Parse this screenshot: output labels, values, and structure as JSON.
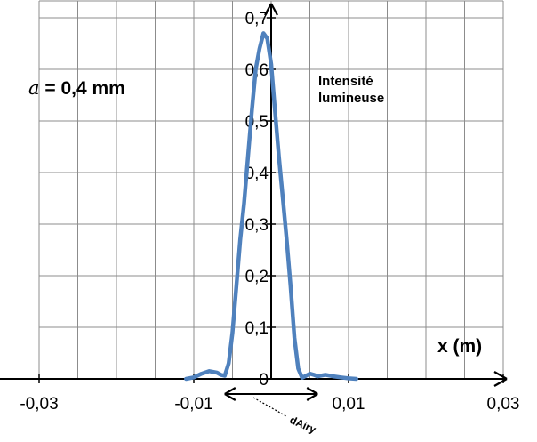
{
  "chart_data": {
    "type": "line",
    "annotation_param_symbol": "a",
    "annotation_param_value": " = 0,4 mm",
    "ylabel_line1": "Intensité",
    "ylabel_line2": "lumineuse",
    "xlabel": "x (m)",
    "width_label": "dAiry",
    "xlim": [
      -0.03,
      0.03
    ],
    "ylim": [
      0,
      0.7
    ],
    "x_ticks": [
      -0.03,
      -0.01,
      0.01,
      0.03
    ],
    "x_tick_labels": [
      "-0,03",
      "-0,01",
      "0,01",
      "0,03"
    ],
    "y_ticks": [
      0.1,
      0.2,
      0.3,
      0.4,
      0.5,
      0.6,
      0.7
    ],
    "y_tick_labels": [
      "0,1",
      "0,2",
      "0,3",
      "0,4",
      "0,5",
      "0,6",
      "0,7"
    ],
    "origin_label": "0",
    "grid": true,
    "line_color": "#4f81bd",
    "series": [
      {
        "x": [
          -0.011,
          -0.01,
          -0.009,
          -0.008,
          -0.007,
          -0.0065,
          -0.006,
          -0.0055,
          -0.005,
          -0.0045,
          -0.004,
          -0.0035,
          -0.003,
          -0.0025,
          -0.002,
          -0.0015,
          -0.001,
          -0.0005,
          0.0,
          0.0005,
          0.001,
          0.0015,
          0.002,
          0.0025,
          0.003,
          0.0035,
          0.004,
          0.0045,
          0.005,
          0.0055,
          0.006,
          0.007,
          0.008,
          0.009,
          0.01,
          0.011
        ],
        "y": [
          0.0,
          0.003,
          0.01,
          0.015,
          0.012,
          0.008,
          0.006,
          0.03,
          0.09,
          0.18,
          0.27,
          0.34,
          0.43,
          0.52,
          0.6,
          0.64,
          0.67,
          0.66,
          0.61,
          0.52,
          0.43,
          0.35,
          0.27,
          0.18,
          0.08,
          0.02,
          0.002,
          0.006,
          0.01,
          0.008,
          0.005,
          0.008,
          0.005,
          0.003,
          0.001,
          0.0
        ]
      }
    ],
    "width_arrow_range": [
      -0.006,
      0.006
    ]
  }
}
